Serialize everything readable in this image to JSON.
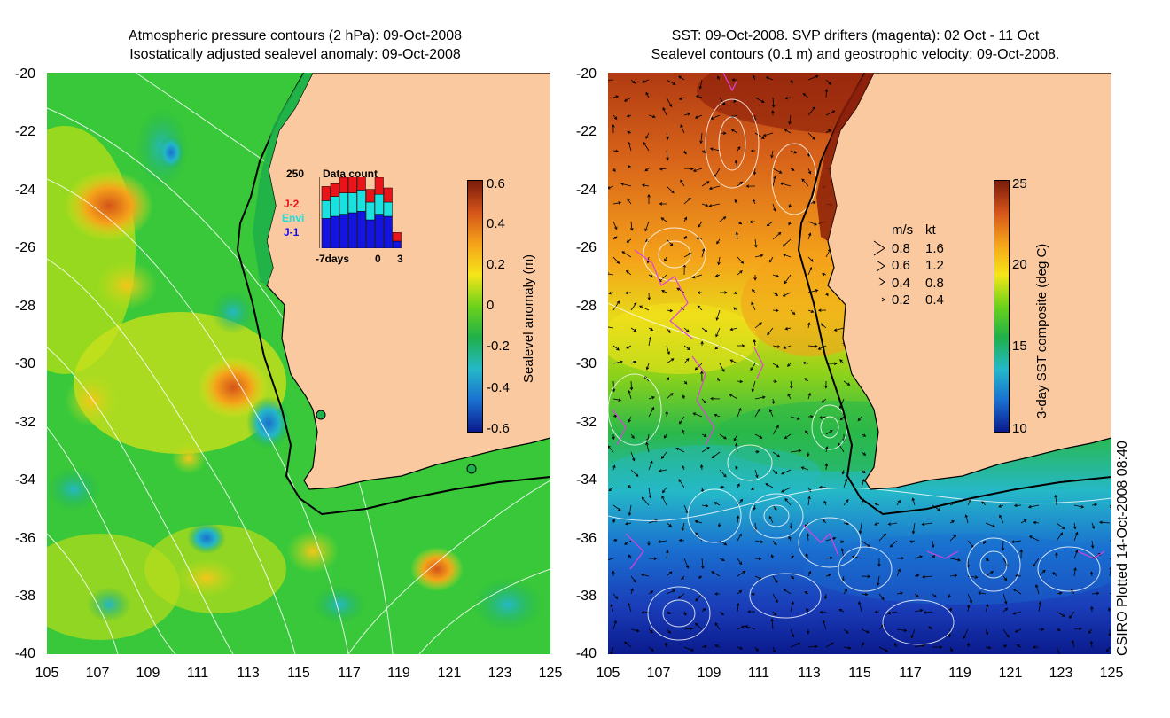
{
  "left_panel": {
    "title_line1": "Atmospheric pressure contours (2 hPa): 09-Oct-2008",
    "title_line2": "Isostatically adjusted sealevel anomaly: 09-Oct-2008",
    "y_ticks": [
      "-20",
      "-22",
      "-24",
      "-26",
      "-28",
      "-30",
      "-32",
      "-34",
      "-36",
      "-38",
      "-40"
    ],
    "x_ticks": [
      "105",
      "107",
      "109",
      "111",
      "113",
      "115",
      "117",
      "119",
      "121",
      "123",
      "125"
    ],
    "colorbar": {
      "title": "Sealevel anomaly (m)",
      "labels": [
        "0.6",
        "0.4",
        "0.2",
        "0",
        "-0.2",
        "-0.4",
        "-0.6"
      ],
      "colors": [
        "#7a1a0a",
        "#d4541a",
        "#f5a21a",
        "#f5e51a",
        "#6cd21a",
        "#1fb04a",
        "#25b8c8",
        "#1a6fd0",
        "#0a1a8c"
      ]
    },
    "inset": {
      "max_label": "250",
      "title": "Data count",
      "series": [
        {
          "name": "J-2",
          "color": "#e8141a"
        },
        {
          "name": "Envi",
          "color": "#1ae0e0"
        },
        {
          "name": "J-1",
          "color": "#1414e0"
        }
      ],
      "x_label_left": "-7days",
      "x_label_mid": "0",
      "x_label_right": "3",
      "bars": [
        {
          "j1": 0.42,
          "envi": 0.25,
          "j2": 0.2
        },
        {
          "j1": 0.45,
          "envi": 0.28,
          "j2": 0.18
        },
        {
          "j1": 0.48,
          "envi": 0.3,
          "j2": 0.22
        },
        {
          "j1": 0.5,
          "envi": 0.28,
          "j2": 0.25
        },
        {
          "j1": 0.52,
          "envi": 0.3,
          "j2": 0.22
        },
        {
          "j1": 0.4,
          "envi": 0.25,
          "j2": 0.18
        },
        {
          "j1": 0.48,
          "envi": 0.28,
          "j2": 0.24
        },
        {
          "j1": 0.45,
          "envi": 0.2,
          "j2": 0.2
        },
        {
          "j1": 0.1,
          "envi": 0.0,
          "j2": 0.12
        }
      ]
    },
    "markers": [
      {
        "name": "station-a",
        "color": "#1fb050"
      },
      {
        "name": "station-b",
        "color": "#1fb050"
      }
    ]
  },
  "right_panel": {
    "title_line1": "SST: 09-Oct-2008. SVP drifters (magenta): 02 Oct - 11 Oct",
    "title_line2": "Sealevel contours (0.1 m) and geostrophic velocity: 09-Oct-2008.",
    "y_ticks": [
      "-20",
      "-22",
      "-24",
      "-26",
      "-28",
      "-30",
      "-32",
      "-34",
      "-36",
      "-38",
      "-40"
    ],
    "x_ticks": [
      "105",
      "107",
      "109",
      "111",
      "113",
      "115",
      "117",
      "119",
      "121",
      "123",
      "125"
    ],
    "colorbar": {
      "title": "3-day SST composite (deg C)",
      "labels": [
        "25",
        "20",
        "15",
        "10"
      ],
      "colors": [
        "#7a1a0a",
        "#d4541a",
        "#f5a21a",
        "#f5e51a",
        "#6cd21a",
        "#1fb04a",
        "#25b8c8",
        "#1a6fd0",
        "#0a1a8c"
      ]
    },
    "velocity_legend": {
      "header_ms": "m/s",
      "header_kt": "kt",
      "rows": [
        {
          "ms": "0.8",
          "kt": "1.6"
        },
        {
          "ms": "0.6",
          "kt": "1.2"
        },
        {
          "ms": "0.4",
          "kt": "0.8"
        },
        {
          "ms": "0.2",
          "kt": "0.4"
        }
      ]
    }
  },
  "colors": {
    "land": "#fac9a0",
    "coast": "#000000",
    "contour": "#ffffff",
    "drifter": "#e040e0"
  },
  "footer": "CSIRO Plotted 14-Oct-2008 08:40"
}
